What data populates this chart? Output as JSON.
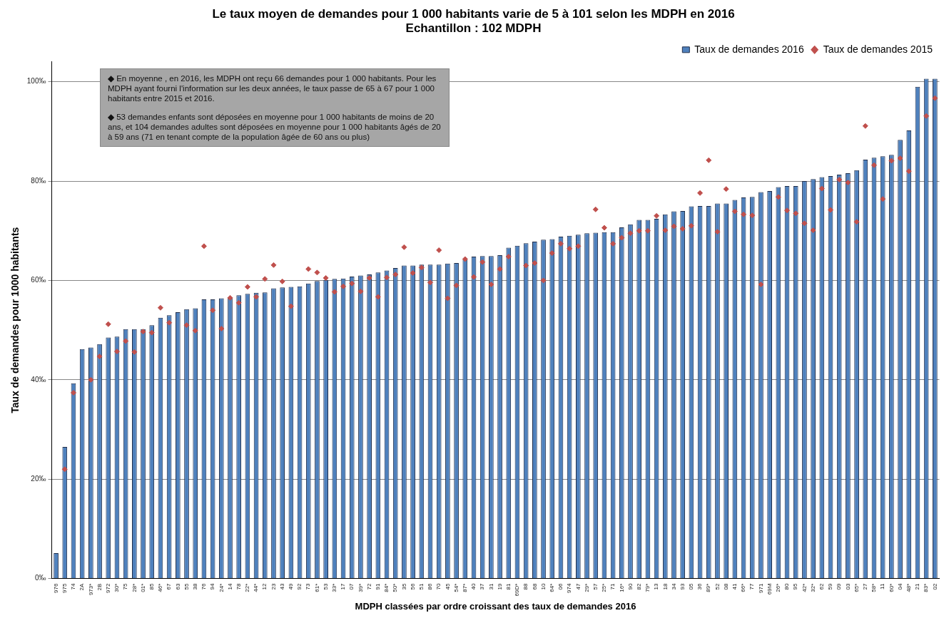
{
  "chart_data": {
    "type": "bar",
    "title": "Le taux moyen de demandes pour 1 000 habitants varie de 5 à 101 selon les MDPH en 2016",
    "subtitle": "Echantillon : 102 MDPH",
    "xlabel": "MDPH classées par ordre croissant des taux de demandes 2016",
    "ylabel": "Taux de demandes pour 1000 habitants",
    "categories": [
      "976",
      "975",
      "74",
      "2A",
      "973*",
      "2B",
      "972",
      "30*",
      "75",
      "28*",
      "01*",
      "85",
      "46*",
      "67",
      "63",
      "55",
      "38",
      "76",
      "94",
      "24*",
      "14",
      "78",
      "22*",
      "44*",
      "12",
      "23",
      "43",
      "49",
      "92",
      "73",
      "61*",
      "53",
      "33*",
      "17",
      "07",
      "39*",
      "72",
      "91",
      "84*",
      "50*",
      "35",
      "56",
      "51",
      "86",
      "70",
      "45",
      "54*",
      "87*",
      "40",
      "37",
      "31",
      "19",
      "81",
      "69D*",
      "88",
      "68",
      "10",
      "64*",
      "06",
      "974",
      "47",
      "29*",
      "57",
      "25*",
      "71",
      "16*",
      "90",
      "82",
      "79*",
      "13",
      "18",
      "34",
      "93",
      "05",
      "36",
      "89*",
      "52",
      "08",
      "41",
      "66*",
      "77",
      "971",
      "69M",
      "26*",
      "80",
      "95",
      "42*",
      "32*",
      "62",
      "59",
      "09",
      "03",
      "65*",
      "27",
      "58*",
      "11",
      "60*",
      "04",
      "48*",
      "21",
      "83*",
      "02"
    ],
    "series": [
      {
        "name": "Taux de demandes 2016",
        "color": "#4f81bd",
        "values": [
          5.1,
          26.5,
          39.3,
          46.2,
          46.5,
          47.2,
          48.5,
          48.7,
          50.2,
          50.2,
          50.2,
          51,
          52.5,
          53,
          53.6,
          54.2,
          54.4,
          56.2,
          56.2,
          56.4,
          56.6,
          57,
          57.3,
          57.5,
          57.6,
          58.4,
          58.6,
          58.7,
          58.8,
          59.4,
          59.9,
          60.1,
          60.3,
          60.4,
          60.8,
          61,
          61.2,
          61.6,
          62,
          62.5,
          63,
          63,
          63.2,
          63.2,
          63.2,
          63.4,
          63.5,
          64.2,
          64.8,
          64.9,
          64.9,
          65.1,
          66.6,
          67,
          67.5,
          67.8,
          68.2,
          68.3,
          68.8,
          69,
          69.2,
          69.5,
          69.6,
          69.7,
          69.7,
          70.7,
          71.3,
          72.2,
          72.2,
          72.4,
          73.3,
          73.9,
          74,
          74.9,
          75,
          75,
          75.5,
          75.5,
          76.2,
          76.7,
          76.8,
          77.8,
          78,
          78.8,
          79,
          79,
          80,
          80.4,
          80.8,
          81,
          81.3,
          81.6,
          82.2,
          84.3,
          84.7,
          85,
          85.3,
          88.3,
          90.2,
          99,
          100.6,
          100.6
        ]
      },
      {
        "name": "Taux de demandes 2015",
        "type": "scatter",
        "color": "#c0504d",
        "values": [
          null,
          22,
          37.4,
          null,
          40,
          44.7,
          51.2,
          45.7,
          47.8,
          45.6,
          49.7,
          49.5,
          54.5,
          51.5,
          null,
          51,
          49.9,
          66.9,
          54,
          50.3,
          56.5,
          55.5,
          58.7,
          56.7,
          60.3,
          63.1,
          59.8,
          54.8,
          null,
          62.3,
          61.6,
          60.5,
          57.7,
          58.8,
          59.4,
          57.8,
          60.5,
          56.7,
          60.6,
          61.2,
          66.7,
          61.5,
          62.6,
          59.6,
          66.1,
          56.4,
          59,
          64.3,
          60.7,
          63.7,
          59.2,
          62.3,
          64.8,
          null,
          63,
          63.5,
          60,
          65.5,
          67.4,
          66.4,
          66.9,
          null,
          74.3,
          70.6,
          67.4,
          68.6,
          69.5,
          70,
          70,
          73,
          70.1,
          70.9,
          70.4,
          71,
          77.6,
          84.2,
          69.8,
          78.4,
          73.9,
          73.3,
          73.1,
          59.2,
          null,
          76.8,
          74.1,
          73.5,
          71.5,
          70.1,
          78.5,
          74.2,
          80.3,
          79.7,
          71.8,
          91.1,
          83.2,
          76.4,
          84.1,
          84.6,
          82,
          null,
          93.1,
          96.7
        ]
      }
    ],
    "ylim": [
      0,
      104
    ],
    "yticks": [
      {
        "value": 0,
        "label": "0‰"
      },
      {
        "value": 20,
        "label": "20‰"
      },
      {
        "value": 40,
        "label": "40‰"
      },
      {
        "value": 60,
        "label": "60‰"
      },
      {
        "value": 80,
        "label": "80‰"
      },
      {
        "value": 100,
        "label": "100‰"
      }
    ],
    "grid": "y",
    "legend": "top right",
    "marker": "diamond",
    "annotations": [
      "◆ En moyenne  , en 2016, les MDPH ont  reçu 66 demandes pour 1 000 habitants.  Pour les MDPH ayant  fourni l'information  sur les deux années, le  taux passe de  65 à 67 pour 1 000 habitants entre 2015 et 2016.",
      "◆ 53 demandes  enfants  sont déposées  en moyenne  pour 1 000 habitants de moins de 20 ans, et 104 demandes  adultes sont déposées  en moyenne  pour 1 000 habitants âgés de 20 à 59 ans (71 en tenant compte de la population  âgée de 60 ans ou plus)"
    ]
  }
}
